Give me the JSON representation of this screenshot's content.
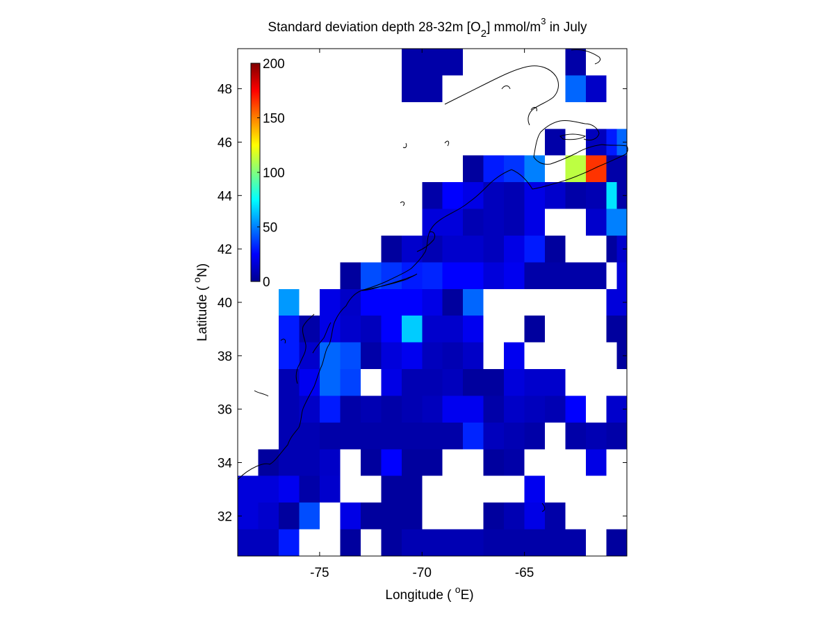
{
  "chart_data": {
    "type": "heatmap",
    "title": {
      "main": "Standard deviation depth 28-32m [O",
      "sub": "2",
      "mid": "] mmol/m",
      "sup": "3",
      "tail": " in July"
    },
    "xlabel": {
      "main": "Longitude ( ",
      "sup": "o",
      "tail": "E)"
    },
    "ylabel": {
      "main": "Latitude ( ",
      "sup": "o",
      "tail": "N)"
    },
    "xlim": [
      -79,
      -60
    ],
    "ylim": [
      30.5,
      49.5
    ],
    "xticks": [
      -75,
      -70,
      -65
    ],
    "xtick_labels": [
      "-75",
      "-70",
      "-65"
    ],
    "yticks": [
      32,
      34,
      36,
      38,
      40,
      42,
      44,
      46,
      48
    ],
    "ytick_labels": [
      "32",
      "34",
      "36",
      "38",
      "40",
      "42",
      "44",
      "46",
      "48"
    ],
    "grid": false,
    "colormap": "jet",
    "colorbar": {
      "location": "top-left inside axes",
      "range": [
        0,
        200
      ],
      "ticks": [
        0,
        50,
        100,
        150,
        200
      ],
      "tick_labels": [
        "0",
        "50",
        "100",
        "150",
        "200"
      ]
    },
    "cell_size_deg": 1,
    "grid_origin": {
      "lon": -79,
      "lat": 30.5
    },
    "cells": [
      {
        "lon": -79,
        "lat": 30.5,
        "v": 12
      },
      {
        "lon": -78,
        "lat": 30.5,
        "v": 12
      },
      {
        "lon": -77,
        "lat": 30.5,
        "v": 30
      },
      {
        "lon": -74,
        "lat": 30.5,
        "v": 6
      },
      {
        "lon": -72,
        "lat": 30.5,
        "v": 6
      },
      {
        "lon": -71,
        "lat": 30.5,
        "v": 10
      },
      {
        "lon": -70,
        "lat": 30.5,
        "v": 10
      },
      {
        "lon": -69,
        "lat": 30.5,
        "v": 10
      },
      {
        "lon": -68,
        "lat": 30.5,
        "v": 10
      },
      {
        "lon": -67,
        "lat": 30.5,
        "v": 8
      },
      {
        "lon": -66,
        "lat": 30.5,
        "v": 8
      },
      {
        "lon": -65,
        "lat": 30.5,
        "v": 8
      },
      {
        "lon": -64,
        "lat": 30.5,
        "v": 8
      },
      {
        "lon": -63,
        "lat": 30.5,
        "v": 8
      },
      {
        "lon": -61,
        "lat": 30.5,
        "v": 6
      },
      {
        "lon": -79,
        "lat": 31.5,
        "v": 18
      },
      {
        "lon": -78,
        "lat": 31.5,
        "v": 15
      },
      {
        "lon": -77,
        "lat": 31.5,
        "v": 6
      },
      {
        "lon": -76,
        "lat": 31.5,
        "v": 40
      },
      {
        "lon": -74,
        "lat": 31.5,
        "v": 20
      },
      {
        "lon": -73,
        "lat": 31.5,
        "v": 6
      },
      {
        "lon": -72,
        "lat": 31.5,
        "v": 6
      },
      {
        "lon": -71,
        "lat": 31.5,
        "v": 6
      },
      {
        "lon": -67,
        "lat": 31.5,
        "v": 6
      },
      {
        "lon": -66,
        "lat": 31.5,
        "v": 10
      },
      {
        "lon": -65,
        "lat": 31.5,
        "v": 20
      },
      {
        "lon": -64,
        "lat": 31.5,
        "v": 8
      },
      {
        "lon": -79,
        "lat": 32.5,
        "v": 18
      },
      {
        "lon": -78,
        "lat": 32.5,
        "v": 18
      },
      {
        "lon": -77,
        "lat": 32.5,
        "v": 22
      },
      {
        "lon": -76,
        "lat": 32.5,
        "v": 8
      },
      {
        "lon": -75,
        "lat": 32.5,
        "v": 15
      },
      {
        "lon": -72,
        "lat": 32.5,
        "v": 6
      },
      {
        "lon": -71,
        "lat": 32.5,
        "v": 6
      },
      {
        "lon": -65,
        "lat": 32.5,
        "v": 22
      },
      {
        "lon": -78,
        "lat": 33.5,
        "v": 6
      },
      {
        "lon": -77,
        "lat": 33.5,
        "v": 10
      },
      {
        "lon": -76,
        "lat": 33.5,
        "v": 10
      },
      {
        "lon": -75,
        "lat": 33.5,
        "v": 14
      },
      {
        "lon": -73,
        "lat": 33.5,
        "v": 6
      },
      {
        "lon": -72,
        "lat": 33.5,
        "v": 25
      },
      {
        "lon": -71,
        "lat": 33.5,
        "v": 6
      },
      {
        "lon": -70,
        "lat": 33.5,
        "v": 6
      },
      {
        "lon": -67,
        "lat": 33.5,
        "v": 6
      },
      {
        "lon": -66,
        "lat": 33.5,
        "v": 8
      },
      {
        "lon": -62,
        "lat": 33.5,
        "v": 20
      },
      {
        "lon": -77,
        "lat": 34.5,
        "v": 10
      },
      {
        "lon": -76,
        "lat": 34.5,
        "v": 10
      },
      {
        "lon": -75,
        "lat": 34.5,
        "v": 8
      },
      {
        "lon": -74,
        "lat": 34.5,
        "v": 8
      },
      {
        "lon": -73,
        "lat": 34.5,
        "v": 8
      },
      {
        "lon": -72,
        "lat": 34.5,
        "v": 8
      },
      {
        "lon": -71,
        "lat": 34.5,
        "v": 8
      },
      {
        "lon": -70,
        "lat": 34.5,
        "v": 8
      },
      {
        "lon": -69,
        "lat": 34.5,
        "v": 8
      },
      {
        "lon": -68,
        "lat": 34.5,
        "v": 32
      },
      {
        "lon": -67,
        "lat": 34.5,
        "v": 12
      },
      {
        "lon": -66,
        "lat": 34.5,
        "v": 10
      },
      {
        "lon": -65,
        "lat": 34.5,
        "v": 8
      },
      {
        "lon": -63,
        "lat": 34.5,
        "v": 8
      },
      {
        "lon": -62,
        "lat": 34.5,
        "v": 10
      },
      {
        "lon": -61,
        "lat": 34.5,
        "v": 8
      },
      {
        "lon": -60.5,
        "lat": 34.5,
        "v": 8
      },
      {
        "lon": -77,
        "lat": 35.5,
        "v": 10
      },
      {
        "lon": -76,
        "lat": 35.5,
        "v": 14
      },
      {
        "lon": -75,
        "lat": 35.5,
        "v": 30
      },
      {
        "lon": -74,
        "lat": 35.5,
        "v": 8
      },
      {
        "lon": -73,
        "lat": 35.5,
        "v": 10
      },
      {
        "lon": -72,
        "lat": 35.5,
        "v": 8
      },
      {
        "lon": -71,
        "lat": 35.5,
        "v": 10
      },
      {
        "lon": -70,
        "lat": 35.5,
        "v": 12
      },
      {
        "lon": -69,
        "lat": 35.5,
        "v": 22
      },
      {
        "lon": -68,
        "lat": 35.5,
        "v": 22
      },
      {
        "lon": -67,
        "lat": 35.5,
        "v": 8
      },
      {
        "lon": -66,
        "lat": 35.5,
        "v": 14
      },
      {
        "lon": -65,
        "lat": 35.5,
        "v": 12
      },
      {
        "lon": -64,
        "lat": 35.5,
        "v": 10
      },
      {
        "lon": -63,
        "lat": 35.5,
        "v": 25
      },
      {
        "lon": -61,
        "lat": 35.5,
        "v": 15
      },
      {
        "lon": -77,
        "lat": 36.5,
        "v": 10
      },
      {
        "lon": -76,
        "lat": 36.5,
        "v": 22
      },
      {
        "lon": -75,
        "lat": 36.5,
        "v": 45
      },
      {
        "lon": -74,
        "lat": 36.5,
        "v": 38
      },
      {
        "lon": -72,
        "lat": 36.5,
        "v": 20
      },
      {
        "lon": -71,
        "lat": 36.5,
        "v": 10
      },
      {
        "lon": -70,
        "lat": 36.5,
        "v": 10
      },
      {
        "lon": -69,
        "lat": 36.5,
        "v": 12
      },
      {
        "lon": -68,
        "lat": 36.5,
        "v": 6
      },
      {
        "lon": -67,
        "lat": 36.5,
        "v": 6
      },
      {
        "lon": -66,
        "lat": 36.5,
        "v": 18
      },
      {
        "lon": -65,
        "lat": 36.5,
        "v": 15
      },
      {
        "lon": -64,
        "lat": 36.5,
        "v": 15
      },
      {
        "lon": -77,
        "lat": 37.5,
        "v": 30
      },
      {
        "lon": -76,
        "lat": 37.5,
        "v": 15
      },
      {
        "lon": -75,
        "lat": 37.5,
        "v": 45
      },
      {
        "lon": -74,
        "lat": 37.5,
        "v": 40
      },
      {
        "lon": -73,
        "lat": 37.5,
        "v": 8
      },
      {
        "lon": -72,
        "lat": 37.5,
        "v": 18
      },
      {
        "lon": -71,
        "lat": 37.5,
        "v": 22
      },
      {
        "lon": -70,
        "lat": 37.5,
        "v": 12
      },
      {
        "lon": -69,
        "lat": 37.5,
        "v": 10
      },
      {
        "lon": -68,
        "lat": 37.5,
        "v": 14
      },
      {
        "lon": -66,
        "lat": 37.5,
        "v": 22
      },
      {
        "lon": -60.5,
        "lat": 37.5,
        "v": 6
      },
      {
        "lon": -77,
        "lat": 38.5,
        "v": 30
      },
      {
        "lon": -76,
        "lat": 38.5,
        "v": 8
      },
      {
        "lon": -75,
        "lat": 38.5,
        "v": 20
      },
      {
        "lon": -74,
        "lat": 38.5,
        "v": 15
      },
      {
        "lon": -73,
        "lat": 38.5,
        "v": 12
      },
      {
        "lon": -72,
        "lat": 38.5,
        "v": 25
      },
      {
        "lon": -71,
        "lat": 38.5,
        "v": 65
      },
      {
        "lon": -70,
        "lat": 38.5,
        "v": 15
      },
      {
        "lon": -69,
        "lat": 38.5,
        "v": 15
      },
      {
        "lon": -68,
        "lat": 38.5,
        "v": 22
      },
      {
        "lon": -65,
        "lat": 38.5,
        "v": 6
      },
      {
        "lon": -61,
        "lat": 38.5,
        "v": 6
      },
      {
        "lon": -60.5,
        "lat": 38.5,
        "v": 6
      },
      {
        "lon": -77,
        "lat": 39.5,
        "v": 55
      },
      {
        "lon": -75,
        "lat": 39.5,
        "v": 20
      },
      {
        "lon": -74,
        "lat": 39.5,
        "v": 14
      },
      {
        "lon": -73,
        "lat": 39.5,
        "v": 25
      },
      {
        "lon": -72,
        "lat": 39.5,
        "v": 25
      },
      {
        "lon": -71,
        "lat": 39.5,
        "v": 25
      },
      {
        "lon": -70,
        "lat": 39.5,
        "v": 20
      },
      {
        "lon": -69,
        "lat": 39.5,
        "v": 6
      },
      {
        "lon": -68,
        "lat": 39.5,
        "v": 45
      },
      {
        "lon": -61,
        "lat": 39.5,
        "v": 18
      },
      {
        "lon": -74,
        "lat": 40.5,
        "v": 6
      },
      {
        "lon": -73,
        "lat": 40.5,
        "v": 40
      },
      {
        "lon": -72,
        "lat": 40.5,
        "v": 35
      },
      {
        "lon": -71,
        "lat": 40.5,
        "v": 30
      },
      {
        "lon": -70,
        "lat": 40.5,
        "v": 32
      },
      {
        "lon": -69,
        "lat": 40.5,
        "v": 25
      },
      {
        "lon": -68,
        "lat": 40.5,
        "v": 25
      },
      {
        "lon": -67,
        "lat": 40.5,
        "v": 18
      },
      {
        "lon": -66,
        "lat": 40.5,
        "v": 22
      },
      {
        "lon": -65,
        "lat": 40.5,
        "v": 8
      },
      {
        "lon": -64,
        "lat": 40.5,
        "v": 8
      },
      {
        "lon": -63,
        "lat": 40.5,
        "v": 8
      },
      {
        "lon": -62,
        "lat": 40.5,
        "v": 8
      },
      {
        "lon": -60.5,
        "lat": 40.5,
        "v": 18
      },
      {
        "lon": -72,
        "lat": 41.5,
        "v": 6
      },
      {
        "lon": -71,
        "lat": 41.5,
        "v": 15
      },
      {
        "lon": -70,
        "lat": 41.5,
        "v": 10
      },
      {
        "lon": -69,
        "lat": 41.5,
        "v": 15
      },
      {
        "lon": -68,
        "lat": 41.5,
        "v": 15
      },
      {
        "lon": -67,
        "lat": 41.5,
        "v": 12
      },
      {
        "lon": -66,
        "lat": 41.5,
        "v": 20
      },
      {
        "lon": -65,
        "lat": 41.5,
        "v": 30
      },
      {
        "lon": -64,
        "lat": 41.5,
        "v": 6
      },
      {
        "lon": -61,
        "lat": 41.5,
        "v": 6
      },
      {
        "lon": -60.5,
        "lat": 41.5,
        "v": 15
      },
      {
        "lon": -70,
        "lat": 42.5,
        "v": 18
      },
      {
        "lon": -69,
        "lat": 42.5,
        "v": 18
      },
      {
        "lon": -68,
        "lat": 42.5,
        "v": 10
      },
      {
        "lon": -67,
        "lat": 42.5,
        "v": 12
      },
      {
        "lon": -66,
        "lat": 42.5,
        "v": 10
      },
      {
        "lon": -65,
        "lat": 42.5,
        "v": 20
      },
      {
        "lon": -62,
        "lat": 42.5,
        "v": 15
      },
      {
        "lon": -61,
        "lat": 42.5,
        "v": 50
      },
      {
        "lon": -70,
        "lat": 43.5,
        "v": 8
      },
      {
        "lon": -69,
        "lat": 43.5,
        "v": 25
      },
      {
        "lon": -68,
        "lat": 43.5,
        "v": 20
      },
      {
        "lon": -67,
        "lat": 43.5,
        "v": 12
      },
      {
        "lon": -66,
        "lat": 43.5,
        "v": 10
      },
      {
        "lon": -65,
        "lat": 43.5,
        "v": 20
      },
      {
        "lon": -64,
        "lat": 43.5,
        "v": 15
      },
      {
        "lon": -63,
        "lat": 43.5,
        "v": 8
      },
      {
        "lon": -62,
        "lat": 43.5,
        "v": 10
      },
      {
        "lon": -61,
        "lat": 43.5,
        "v": 70
      },
      {
        "lon": -60.5,
        "lat": 43.5,
        "v": 8
      },
      {
        "lon": -68,
        "lat": 44.5,
        "v": 6
      },
      {
        "lon": -67,
        "lat": 44.5,
        "v": 30
      },
      {
        "lon": -66,
        "lat": 44.5,
        "v": 35
      },
      {
        "lon": -65,
        "lat": 44.5,
        "v": 50
      },
      {
        "lon": -63,
        "lat": 44.5,
        "v": 112
      },
      {
        "lon": -62,
        "lat": 44.5,
        "v": 165
      },
      {
        "lon": -61,
        "lat": 44.5,
        "v": 8
      },
      {
        "lon": -60.5,
        "lat": 44.5,
        "v": 8
      },
      {
        "lon": -64,
        "lat": 45.5,
        "v": 8
      },
      {
        "lon": -62,
        "lat": 45.5,
        "v": 12
      },
      {
        "lon": -61,
        "lat": 45.5,
        "v": 30
      },
      {
        "lon": -60.5,
        "lat": 45.5,
        "v": 45
      },
      {
        "lon": -71,
        "lat": 47.5,
        "v": 8
      },
      {
        "lon": -70,
        "lat": 47.5,
        "v": 8
      },
      {
        "lon": -63,
        "lat": 47.5,
        "v": 45
      },
      {
        "lon": -62,
        "lat": 47.5,
        "v": 14
      },
      {
        "lon": -71,
        "lat": 48.5,
        "v": 8
      },
      {
        "lon": -70,
        "lat": 48.5,
        "v": 8
      },
      {
        "lon": -69,
        "lat": 48.5,
        "v": 8
      },
      {
        "lon": -63,
        "lat": 48.5,
        "v": 8
      }
    ]
  }
}
